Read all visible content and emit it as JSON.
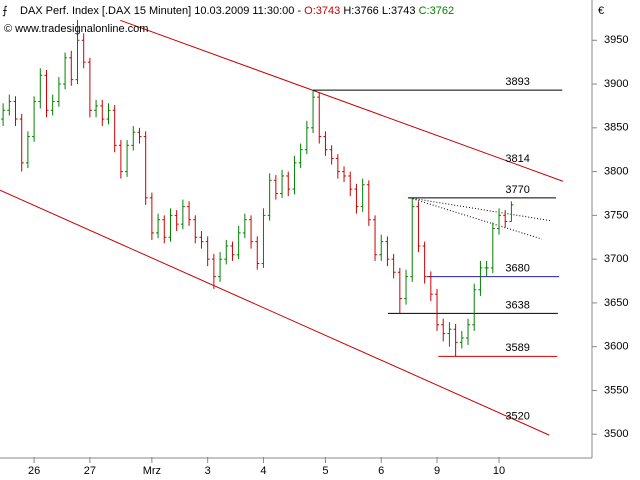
{
  "chart_data": {
    "type": "ohlc",
    "title": "DAX Perf. Index [.DAX  15 Minuten]",
    "timestamp": "10.03.2009 11:30:00 -",
    "quote": [
      "O:3743",
      "H:3766",
      "L:3743",
      "C:3762"
    ],
    "watermark": "www.tradesignalonline.com",
    "currency": "€",
    "up_color": "#008000",
    "down_color": "#cc0000",
    "open": [
      3860,
      3870,
      3880,
      3860,
      3810,
      3840,
      3880,
      3910,
      3870,
      3880,
      3900,
      3930,
      3905,
      3950,
      3925,
      3870,
      3875,
      3860,
      3870,
      3830,
      3800,
      3830,
      3845,
      3840,
      3770,
      3730,
      3745,
      3725,
      3750,
      3740,
      3760,
      3745,
      3725,
      3720,
      3700,
      3680,
      3700,
      3715,
      3705,
      3730,
      3745,
      3720,
      3695,
      3750,
      3790,
      3775,
      3795,
      3780,
      3810,
      3825,
      3850,
      3885,
      3840,
      3825,
      3815,
      3800,
      3795,
      3780,
      3760,
      3785,
      3745,
      3705,
      3720,
      3700,
      3685,
      3655,
      3680,
      3760,
      3715,
      3680,
      3660,
      3625,
      3615,
      3620,
      3605,
      3610,
      3625,
      3665,
      3690,
      3690,
      3735,
      3750,
      3743
    ],
    "high": [
      3878,
      3888,
      3886,
      3866,
      3846,
      3886,
      3918,
      3916,
      3888,
      3908,
      3936,
      3938,
      3973,
      3958,
      3930,
      3882,
      3882,
      3878,
      3876,
      3836,
      3836,
      3852,
      3850,
      3846,
      3776,
      3752,
      3750,
      3758,
      3756,
      3768,
      3766,
      3750,
      3732,
      3726,
      3706,
      3708,
      3722,
      3720,
      3738,
      3752,
      3750,
      3726,
      3758,
      3798,
      3796,
      3802,
      3800,
      3818,
      3832,
      3858,
      3893,
      3890,
      3846,
      3830,
      3820,
      3806,
      3800,
      3786,
      3792,
      3790,
      3750,
      3728,
      3726,
      3706,
      3690,
      3688,
      3770,
      3766,
      3720,
      3686,
      3666,
      3632,
      3628,
      3626,
      3618,
      3632,
      3672,
      3698,
      3698,
      3742,
      3758,
      3756,
      3766
    ],
    "low": [
      3852,
      3864,
      3852,
      3800,
      3804,
      3834,
      3872,
      3862,
      3864,
      3874,
      3894,
      3898,
      3900,
      3918,
      3862,
      3862,
      3852,
      3854,
      3822,
      3792,
      3794,
      3824,
      3832,
      3762,
      3722,
      3724,
      3718,
      3720,
      3732,
      3734,
      3738,
      3718,
      3712,
      3692,
      3666,
      3674,
      3694,
      3698,
      3700,
      3724,
      3712,
      3688,
      3690,
      3744,
      3768,
      3770,
      3772,
      3774,
      3804,
      3820,
      3844,
      3832,
      3818,
      3808,
      3792,
      3788,
      3772,
      3752,
      3754,
      3738,
      3698,
      3698,
      3692,
      3678,
      3638,
      3648,
      3674,
      3708,
      3672,
      3652,
      3618,
      3606,
      3600,
      3589,
      3598,
      3602,
      3618,
      3658,
      3680,
      3684,
      3728,
      3736,
      3743
    ],
    "close": [
      3870,
      3880,
      3860,
      3810,
      3840,
      3880,
      3910,
      3870,
      3880,
      3900,
      3930,
      3905,
      3950,
      3925,
      3870,
      3875,
      3860,
      3870,
      3830,
      3800,
      3830,
      3845,
      3840,
      3770,
      3730,
      3745,
      3725,
      3750,
      3740,
      3760,
      3745,
      3725,
      3720,
      3700,
      3680,
      3700,
      3715,
      3705,
      3730,
      3745,
      3720,
      3695,
      3750,
      3790,
      3775,
      3795,
      3780,
      3810,
      3825,
      3850,
      3885,
      3840,
      3825,
      3815,
      3800,
      3795,
      3780,
      3760,
      3785,
      3745,
      3705,
      3720,
      3700,
      3685,
      3655,
      3680,
      3760,
      3715,
      3680,
      3660,
      3625,
      3615,
      3620,
      3605,
      3610,
      3625,
      3665,
      3690,
      3690,
      3735,
      3750,
      3743,
      3762
    ],
    "xlim": [
      -0.5,
      95
    ],
    "xticks": [
      {
        "value": 5,
        "label": "26"
      },
      {
        "value": 14,
        "label": "27"
      },
      {
        "value": 24,
        "label": "Mrz"
      },
      {
        "value": 33,
        "label": "3"
      },
      {
        "value": 42,
        "label": "4"
      },
      {
        "value": 52,
        "label": "5"
      },
      {
        "value": 61,
        "label": "6"
      },
      {
        "value": 70,
        "label": "9"
      },
      {
        "value": 80,
        "label": "10"
      }
    ],
    "ylim": [
      3474,
      3996
    ],
    "yticks": [
      3500,
      3550,
      3600,
      3650,
      3700,
      3750,
      3800,
      3850,
      3900,
      3950
    ],
    "levels": [
      {
        "value": 3893,
        "color": "#000000",
        "from": 50,
        "to": 90.2
      },
      {
        "value": 3770,
        "color": "#000000",
        "from": 65.3,
        "to": 89.2
      },
      {
        "value": 3680,
        "color": "#2020c0",
        "from": 68.4,
        "to": 89.7
      },
      {
        "value": 3638,
        "color": "#000000",
        "from": 62.1,
        "to": 89.5
      },
      {
        "value": 3589,
        "color": "#cc0000",
        "from": 70.2,
        "to": 89.4
      }
    ],
    "trendlines": [
      {
        "x": [
          18.9,
          90.3
        ],
        "y": [
          3972.8,
          3789
        ],
        "color": "#cc0000",
        "label": 3814,
        "label_x": 83
      },
      {
        "x": [
          -0.5,
          88.1
        ],
        "y": [
          3778.7,
          3499
        ],
        "color": "#cc0000",
        "label": 3520,
        "label_x": 83
      }
    ],
    "dotted": [
      {
        "x": [
          65.6,
          88.2
        ],
        "y": [
          3770,
          3744
        ]
      },
      {
        "x": [
          65.6,
          86.9
        ],
        "y": [
          3770,
          3723
        ]
      }
    ],
    "level_label_x": 83
  }
}
